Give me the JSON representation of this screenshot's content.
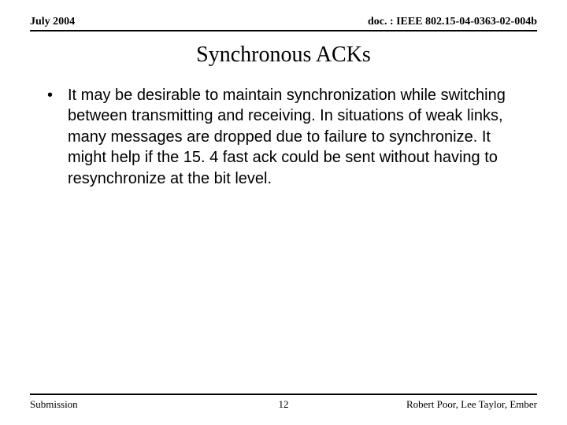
{
  "header": {
    "left": "July 2004",
    "right": "doc. : IEEE 802.15-04-0363-02-004b"
  },
  "title": "Synchronous ACKs",
  "bullets": [
    "It may be desirable to maintain synchronization while switching between transmitting and receiving.  In situations of weak links, many messages are dropped due to failure to synchronize.  It might help if the 15. 4 fast ack could be sent without having to resynchronize at the bit level."
  ],
  "footer": {
    "left": "Submission",
    "page": "12",
    "right": "Robert Poor, Lee Taylor, Ember"
  },
  "colors": {
    "background": "#ffffff",
    "text": "#000000",
    "rule": "#000000"
  },
  "fonts": {
    "header_footer_family": "Times New Roman",
    "title_family": "Times New Roman",
    "body_family": "Arial",
    "header_size_pt": 11,
    "title_size_pt": 21,
    "body_size_pt": 15,
    "footer_size_pt": 10
  }
}
